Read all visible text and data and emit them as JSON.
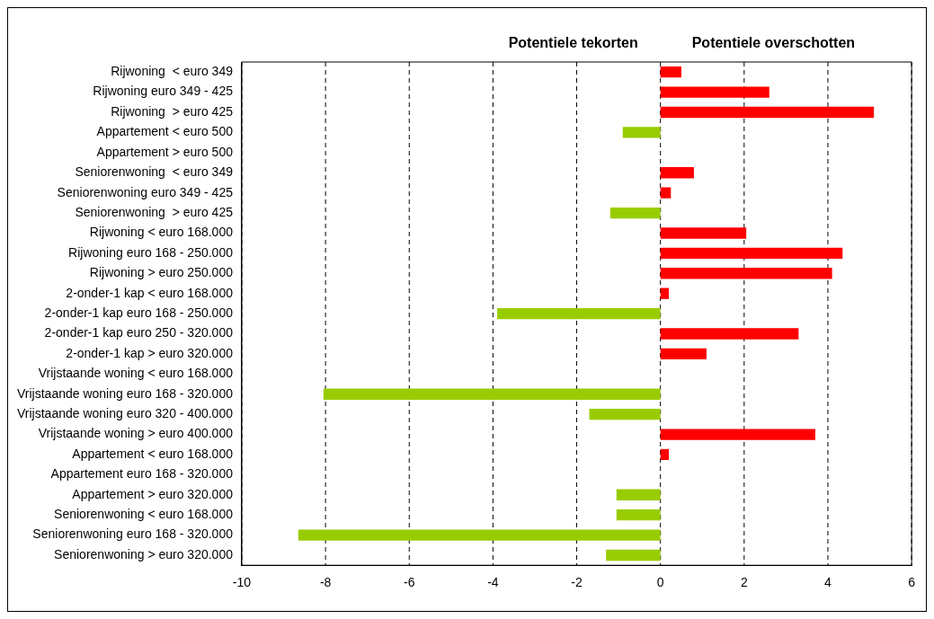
{
  "chart_data": {
    "type": "bar",
    "orientation": "horizontal",
    "categories": [
      "Rijwoning  < euro 349",
      "Rijwoning euro 349 - 425",
      "Rijwoning  > euro 425",
      "Appartement < euro 500",
      "Appartement > euro 500",
      "Seniorenwoning  < euro 349",
      "Seniorenwoning euro 349 - 425",
      "Seniorenwoning  > euro 425",
      "Rijwoning < euro 168.000",
      "Rijwoning euro 168 - 250.000",
      "Rijwoning > euro 250.000",
      "2-onder-1 kap < euro 168.000",
      "2-onder-1 kap euro 168 - 250.000",
      "2-onder-1 kap euro 250 - 320.000",
      "2-onder-1 kap > euro 320.000",
      "Vrijstaande woning < euro 168.000",
      "Vrijstaande woning euro 168 - 320.000",
      "Vrijstaande woning euro 320 - 400.000",
      "Vrijstaande woning > euro 400.000",
      "Appartement < euro 168.000",
      "Appartement euro 168 - 320.000",
      "Appartement > euro 320.000",
      "Seniorenwoning < euro 168.000",
      "Seniorenwoning euro 168 - 320.000",
      "Seniorenwoning > euro 320.000"
    ],
    "values": [
      0.5,
      2.6,
      5.1,
      -0.9,
      0,
      0.8,
      0.25,
      -1.2,
      2.05,
      4.35,
      4.1,
      0.2,
      -3.9,
      3.3,
      1.1,
      0,
      -8.05,
      -1.7,
      3.7,
      0.2,
      0,
      -1.05,
      -1.05,
      -8.65,
      -1.3
    ],
    "colors": [
      "#ff0000",
      "#ff0000",
      "#ff0000",
      "#99cc00",
      "#99cc00",
      "#ff0000",
      "#ff0000",
      "#99cc00",
      "#ff0000",
      "#ff0000",
      "#ff0000",
      "#ff0000",
      "#99cc00",
      "#ff0000",
      "#ff0000",
      "#99cc00",
      "#99cc00",
      "#99cc00",
      "#ff0000",
      "#ff0000",
      "#99cc00",
      "#99cc00",
      "#99cc00",
      "#99cc00",
      "#99cc00"
    ],
    "xlim": [
      -10,
      6
    ],
    "xticks": [
      -10,
      -8,
      -6,
      -4,
      -2,
      0,
      2,
      4,
      6
    ],
    "grid": "x",
    "line_style": "dashed",
    "annotations": [
      "Potentiele tekorten",
      "Potentiele overschotten"
    ]
  }
}
